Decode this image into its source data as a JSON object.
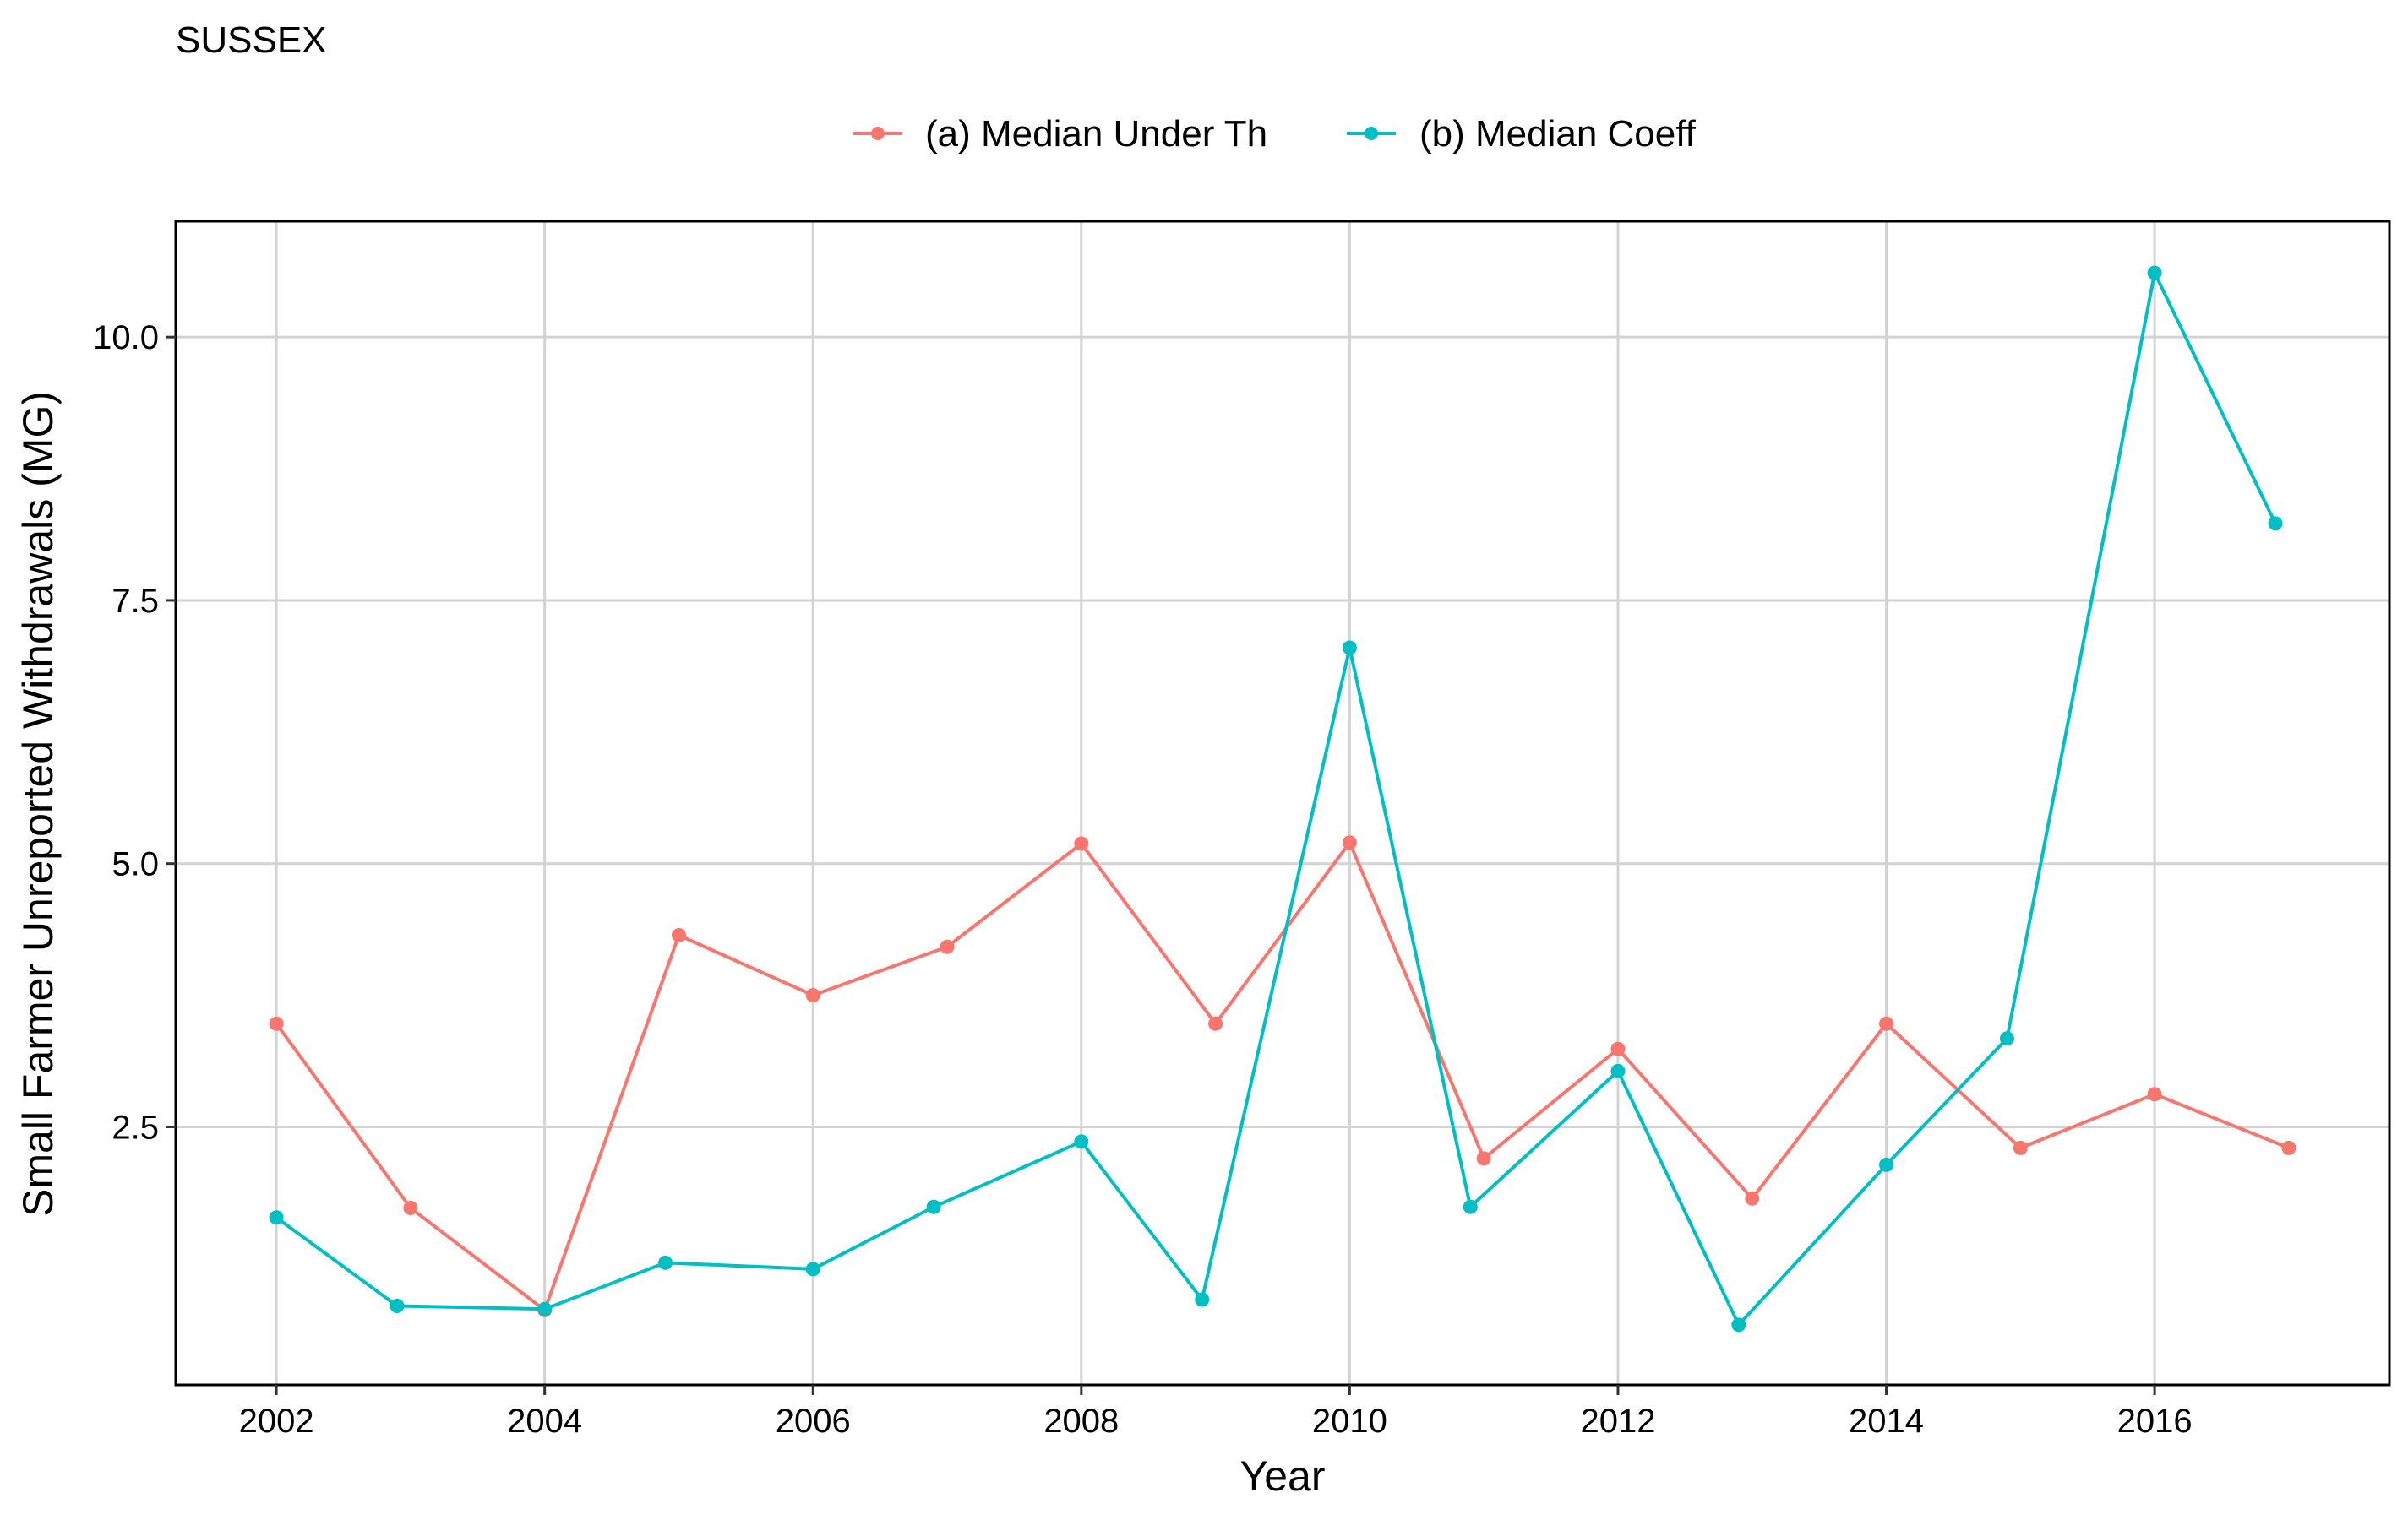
{
  "chart_data": {
    "type": "line",
    "title": "SUSSEX",
    "xlabel": "Year",
    "ylabel": "Small Farmer Unreported Withdrawals (MG)",
    "x": [
      2002,
      2003,
      2004,
      2005,
      2006,
      2007,
      2008,
      2009,
      2010,
      2011,
      2012,
      2013,
      2014,
      2015,
      2016,
      2017
    ],
    "x_ticks": [
      2002,
      2004,
      2006,
      2008,
      2010,
      2012,
      2014,
      2016
    ],
    "y_ticks": [
      2.5,
      5.0,
      7.5,
      10.0
    ],
    "y_tick_labels": [
      "2.5",
      "5.0",
      "7.5",
      "10.0"
    ],
    "xlim": [
      2001.25,
      2017.75
    ],
    "ylim": [
      0.05,
      11.1
    ],
    "grid": true,
    "legend_position": "top",
    "series": [
      {
        "name": "(a) Median Under Th",
        "color": "#F8766D",
        "values": [
          3.48,
          1.73,
          0.76,
          4.32,
          3.75,
          4.21,
          5.19,
          3.48,
          5.2,
          2.2,
          3.24,
          1.82,
          3.48,
          2.3,
          2.81,
          2.3
        ]
      },
      {
        "name": "(b) Median Coeff",
        "color": "#00BFC4",
        "values": [
          1.64,
          0.8,
          0.77,
          1.21,
          1.15,
          1.74,
          2.36,
          0.86,
          7.05,
          1.74,
          3.03,
          0.62,
          2.14,
          3.34,
          10.61,
          8.23
        ]
      }
    ]
  }
}
